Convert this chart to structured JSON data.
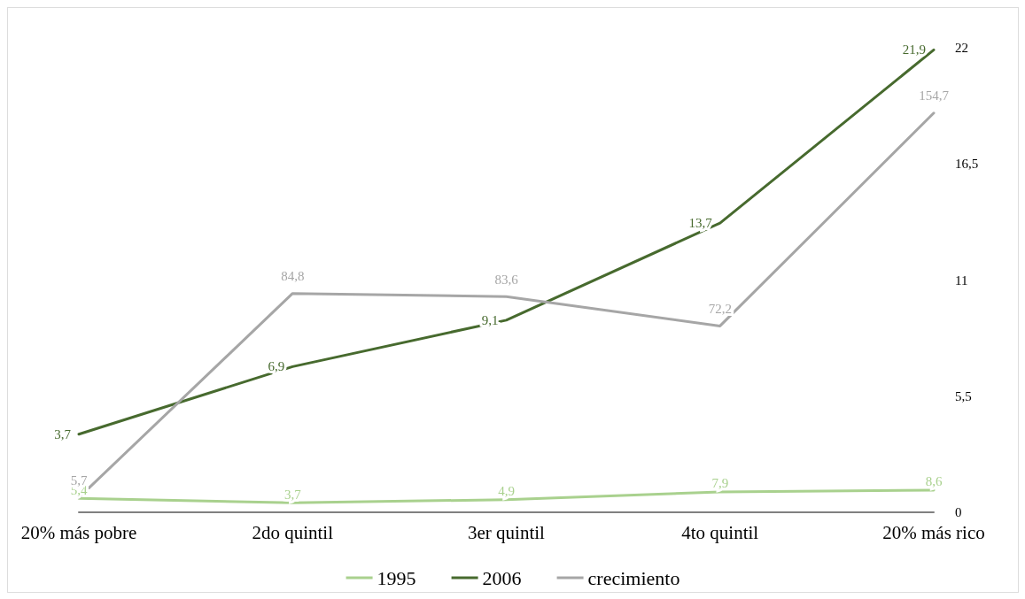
{
  "chart_data": {
    "type": "line",
    "categories": [
      "20% más pobre",
      "2do quintil",
      "3er quintil",
      "4to quintil",
      "20% más rico"
    ],
    "series": [
      {
        "name": "1995",
        "color": "#a9d18e",
        "values": [
          5.4,
          3.7,
          4.9,
          7.9,
          8.6
        ],
        "value_labels": [
          "5,4",
          "3,7",
          "4,9",
          "7,9",
          "8,6"
        ]
      },
      {
        "name": "2006",
        "color": "#476a2e",
        "axis": "y2",
        "values": [
          3.7,
          6.9,
          9.1,
          13.7,
          21.9
        ],
        "value_labels": [
          "3,7",
          "6,9",
          "9,1",
          "13,7",
          "21,9"
        ]
      },
      {
        "name": "crecimiento",
        "color": "#a6a6a6",
        "values": [
          5.7,
          84.8,
          83.6,
          72.2,
          154.7
        ],
        "value_labels": [
          "5,7",
          "84,8",
          "83,6",
          "72,2",
          "154,7"
        ]
      }
    ],
    "y2lim": [
      0,
      22
    ],
    "y2ticks": [
      0,
      {
        "value": 5.5,
        "label": "5,5"
      },
      11,
      {
        "value": 16.5,
        "label": "16,5"
      },
      22
    ],
    "grid": false,
    "legend": "bottom",
    "marker": "none",
    "line_style": "solid"
  }
}
